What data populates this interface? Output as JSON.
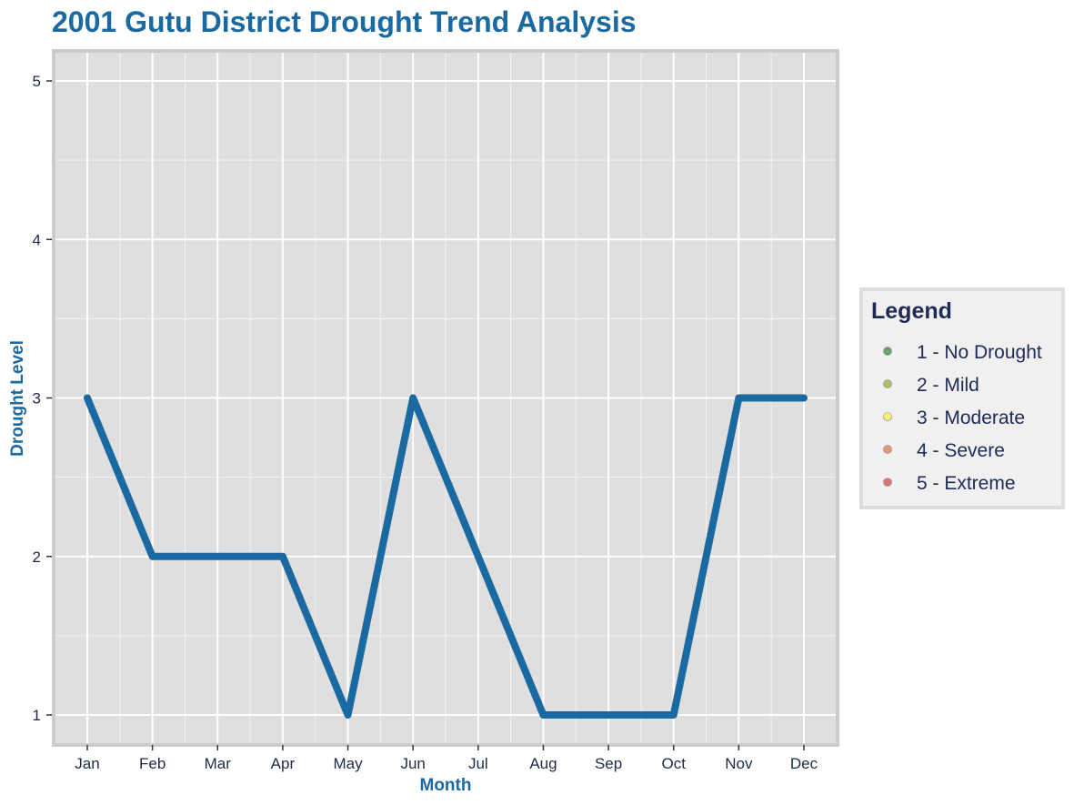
{
  "colors": {
    "accent": "#1a6aa1",
    "text_dark": "#1f2a56",
    "panel_bg": "#dfdfdf",
    "panel_border": "#cccccc",
    "grid": "#ffffff",
    "legend_bg": "#f0f0f0"
  },
  "chart_data": {
    "type": "line",
    "title": "2001 Gutu District Drought Trend Analysis",
    "xlabel": "Month",
    "ylabel": "Drought Level",
    "categories": [
      "Jan",
      "Feb",
      "Mar",
      "Apr",
      "May",
      "Jun",
      "Jul",
      "Aug",
      "Sep",
      "Oct",
      "Nov",
      "Dec"
    ],
    "series": [
      {
        "values": [
          3,
          2,
          2,
          2,
          1,
          3,
          2,
          1,
          1,
          1,
          3,
          3
        ],
        "color": "#1a6aa1"
      }
    ],
    "ylim": [
      1,
      5
    ],
    "yticks": [
      1,
      2,
      3,
      4,
      5
    ],
    "grid": true,
    "legend": {
      "title": "Legend",
      "position": "right",
      "items": [
        {
          "label": "1 - No Drought",
          "color": "#5a9a68"
        },
        {
          "label": "2 - Mild",
          "color": "#9dc15a"
        },
        {
          "label": "3 - Moderate",
          "color": "#f4f06c"
        },
        {
          "label": "4 - Severe",
          "color": "#e0916a"
        },
        {
          "label": "5 - Extreme",
          "color": "#d46a6a"
        }
      ]
    }
  }
}
